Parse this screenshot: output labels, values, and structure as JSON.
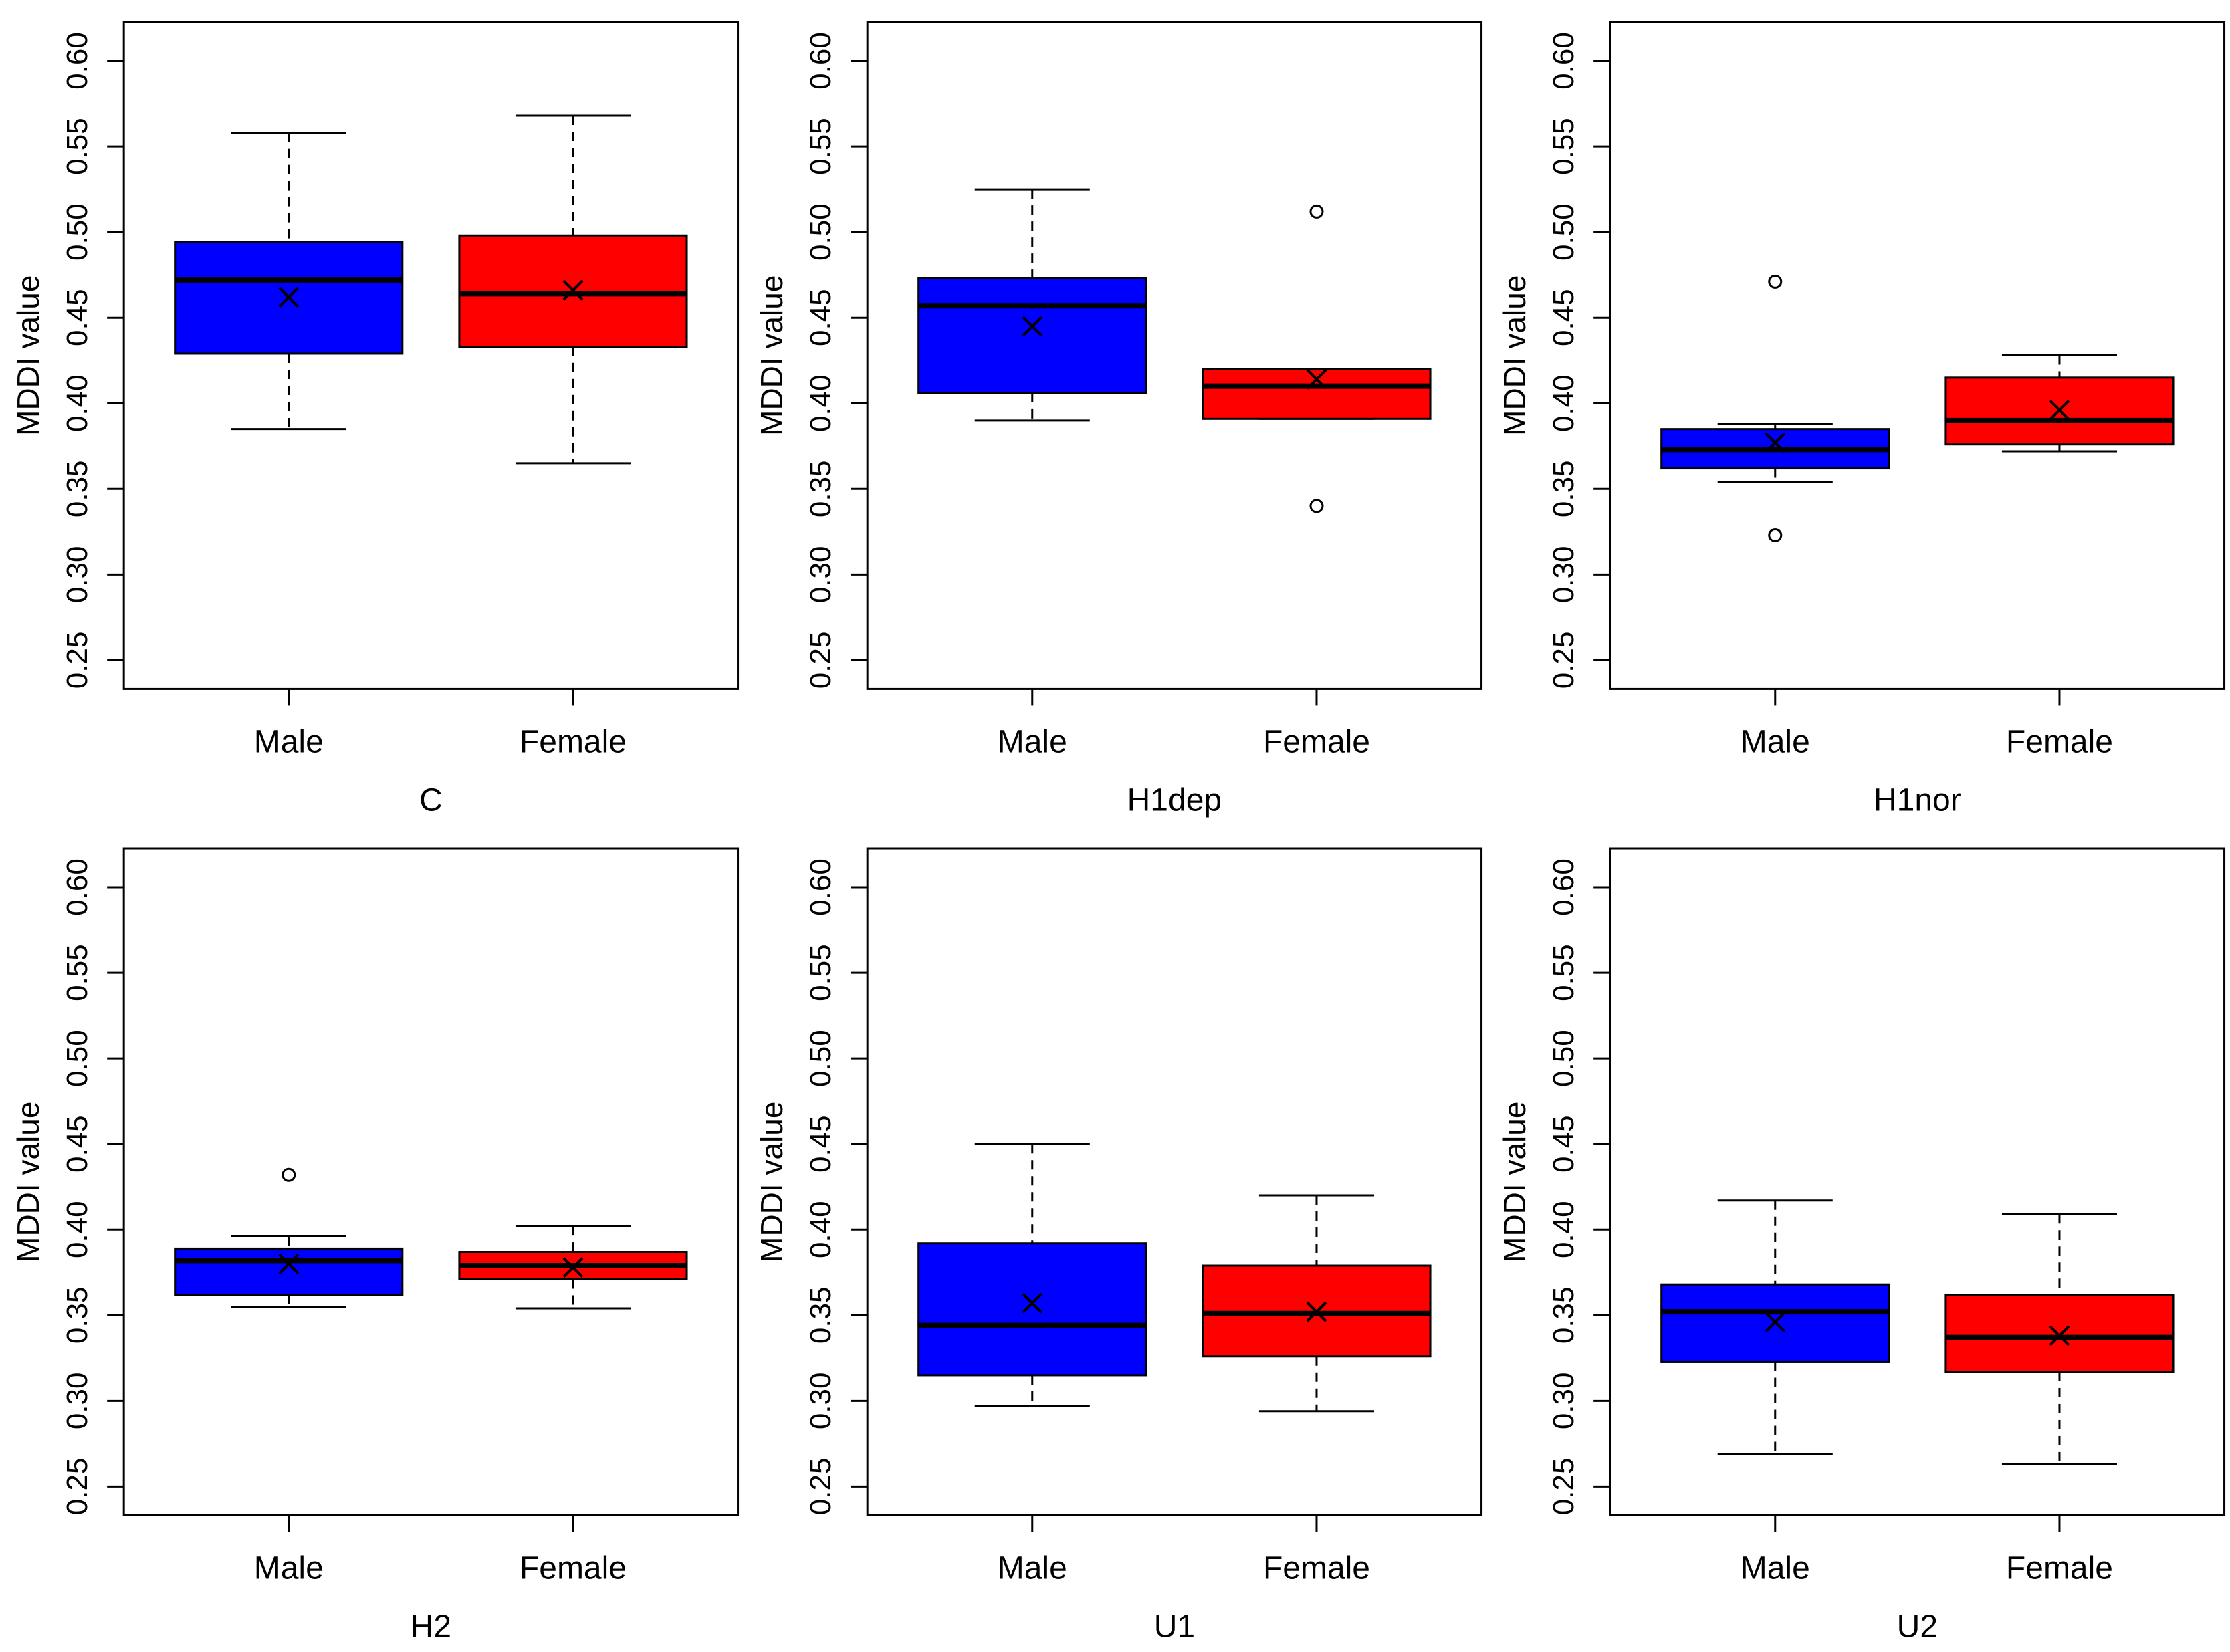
{
  "figure": {
    "description": "Boxplots of MDDI value by gender for six conditions",
    "male_color": "#0000FF",
    "female_color": "#FF0000",
    "axis_color": "#000000",
    "background_color": "#FFFFFF"
  },
  "chart_data": [
    {
      "type": "boxplot",
      "title": "C",
      "ylabel": "MDDI value",
      "categories": [
        "Male",
        "Female"
      ],
      "yticks": [
        0.25,
        0.3,
        0.35,
        0.4,
        0.45,
        0.5,
        0.55,
        0.6
      ],
      "ylim": [
        0.233,
        0.623
      ],
      "grid": false,
      "boxes": [
        {
          "label": "Male",
          "color": "#0000FF",
          "whisker_low": 0.385,
          "q1": 0.429,
          "median": 0.472,
          "q3": 0.494,
          "whisker_high": 0.558,
          "mean": 0.462,
          "outliers": []
        },
        {
          "label": "Female",
          "color": "#FF0000",
          "whisker_low": 0.365,
          "q1": 0.433,
          "median": 0.464,
          "q3": 0.498,
          "whisker_high": 0.568,
          "mean": 0.466,
          "outliers": []
        }
      ]
    },
    {
      "type": "boxplot",
      "title": "H1dep",
      "ylabel": "MDDI value",
      "categories": [
        "Male",
        "Female"
      ],
      "yticks": [
        0.25,
        0.3,
        0.35,
        0.4,
        0.45,
        0.5,
        0.55,
        0.6
      ],
      "ylim": [
        0.233,
        0.623
      ],
      "grid": false,
      "boxes": [
        {
          "label": "Male",
          "color": "#0000FF",
          "whisker_low": 0.39,
          "q1": 0.406,
          "median": 0.457,
          "q3": 0.473,
          "whisker_high": 0.525,
          "mean": 0.445,
          "outliers": []
        },
        {
          "label": "Female",
          "color": "#FF0000",
          "whisker_low": 0.391,
          "q1": 0.391,
          "median": 0.41,
          "q3": 0.42,
          "whisker_high": 0.42,
          "mean": 0.414,
          "outliers": [
            0.512,
            0.34
          ]
        }
      ]
    },
    {
      "type": "boxplot",
      "title": "H1nor",
      "ylabel": "MDDI value",
      "categories": [
        "Male",
        "Female"
      ],
      "yticks": [
        0.25,
        0.3,
        0.35,
        0.4,
        0.45,
        0.5,
        0.55,
        0.6
      ],
      "ylim": [
        0.233,
        0.623
      ],
      "grid": false,
      "boxes": [
        {
          "label": "Male",
          "color": "#0000FF",
          "whisker_low": 0.354,
          "q1": 0.362,
          "median": 0.373,
          "q3": 0.385,
          "whisker_high": 0.388,
          "mean": 0.377,
          "outliers": [
            0.471,
            0.323
          ]
        },
        {
          "label": "Female",
          "color": "#FF0000",
          "whisker_low": 0.372,
          "q1": 0.376,
          "median": 0.39,
          "q3": 0.415,
          "whisker_high": 0.428,
          "mean": 0.396,
          "outliers": []
        }
      ]
    },
    {
      "type": "boxplot",
      "title": "H2",
      "ylabel": "MDDI value",
      "categories": [
        "Male",
        "Female"
      ],
      "yticks": [
        0.25,
        0.3,
        0.35,
        0.4,
        0.45,
        0.5,
        0.55,
        0.6
      ],
      "ylim": [
        0.233,
        0.623
      ],
      "grid": false,
      "boxes": [
        {
          "label": "Male",
          "color": "#0000FF",
          "whisker_low": 0.355,
          "q1": 0.362,
          "median": 0.382,
          "q3": 0.389,
          "whisker_high": 0.396,
          "mean": 0.38,
          "outliers": [
            0.432
          ]
        },
        {
          "label": "Female",
          "color": "#FF0000",
          "whisker_low": 0.354,
          "q1": 0.371,
          "median": 0.379,
          "q3": 0.387,
          "whisker_high": 0.402,
          "mean": 0.378,
          "outliers": []
        }
      ]
    },
    {
      "type": "boxplot",
      "title": "U1",
      "ylabel": "MDDI value",
      "categories": [
        "Male",
        "Female"
      ],
      "yticks": [
        0.25,
        0.3,
        0.35,
        0.4,
        0.45,
        0.5,
        0.55,
        0.6
      ],
      "ylim": [
        0.233,
        0.623
      ],
      "grid": false,
      "boxes": [
        {
          "label": "Male",
          "color": "#0000FF",
          "whisker_low": 0.297,
          "q1": 0.315,
          "median": 0.344,
          "q3": 0.392,
          "whisker_high": 0.45,
          "mean": 0.357,
          "outliers": []
        },
        {
          "label": "Female",
          "color": "#FF0000",
          "whisker_low": 0.294,
          "q1": 0.326,
          "median": 0.351,
          "q3": 0.379,
          "whisker_high": 0.42,
          "mean": 0.352,
          "outliers": []
        }
      ]
    },
    {
      "type": "boxplot",
      "title": "U2",
      "ylabel": "MDDI value",
      "categories": [
        "Male",
        "Female"
      ],
      "yticks": [
        0.25,
        0.3,
        0.35,
        0.4,
        0.45,
        0.5,
        0.55,
        0.6
      ],
      "ylim": [
        0.233,
        0.623
      ],
      "grid": false,
      "boxes": [
        {
          "label": "Male",
          "color": "#0000FF",
          "whisker_low": 0.269,
          "q1": 0.323,
          "median": 0.352,
          "q3": 0.368,
          "whisker_high": 0.417,
          "mean": 0.346,
          "outliers": []
        },
        {
          "label": "Female",
          "color": "#FF0000",
          "whisker_low": 0.263,
          "q1": 0.317,
          "median": 0.337,
          "q3": 0.362,
          "whisker_high": 0.409,
          "mean": 0.338,
          "outliers": []
        }
      ]
    }
  ]
}
